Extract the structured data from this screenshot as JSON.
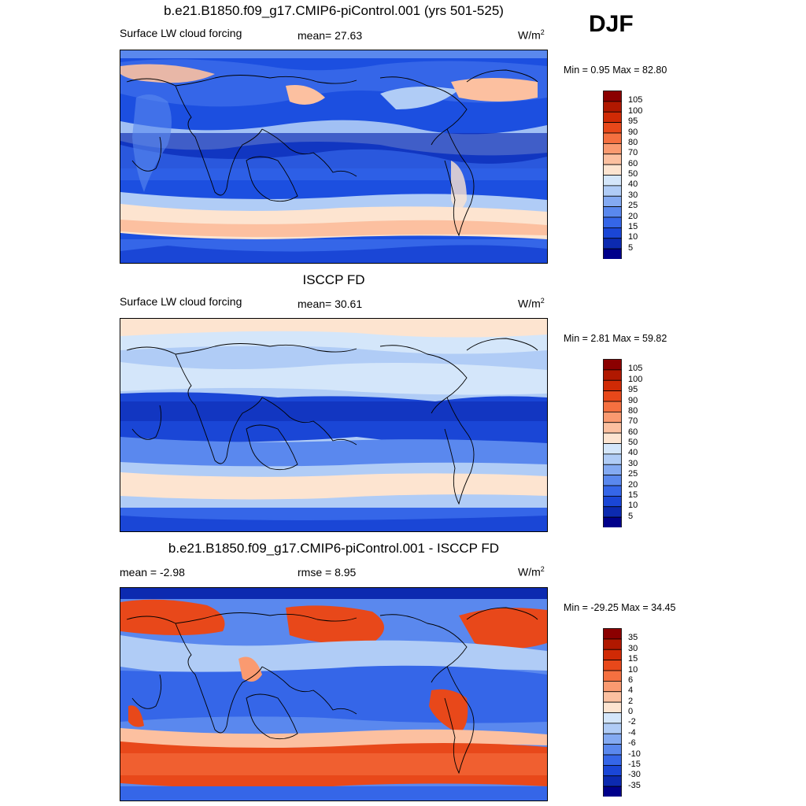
{
  "season": "DJF",
  "panels": [
    {
      "id": "model",
      "title": "b.e21.B1850.f09_g17.CMIP6-piControl.001 (yrs 501-525)",
      "left_label": "Surface LW cloud forcing",
      "center_label": "mean=  27.63",
      "units": "W/m",
      "units_sup": "2",
      "minmax": "Min =   0.95 Max =  82.80",
      "colorbar_labels": [
        "105",
        "100",
        "95",
        "90",
        "80",
        "70",
        "60",
        "50",
        "40",
        "30",
        "25",
        "20",
        "15",
        "10",
        "5"
      ],
      "colorbar_colors": [
        "#8b0000",
        "#b01800",
        "#d02a05",
        "#e8481a",
        "#f57040",
        "#fa9a70",
        "#fcc0a0",
        "#fde4d0",
        "#d4e6fa",
        "#b0ccf6",
        "#84aaf2",
        "#5a88ee",
        "#3566e8",
        "#1a46d6",
        "#0c2ab0",
        "#00008b"
      ]
    },
    {
      "id": "obs",
      "title": "ISCCP FD",
      "left_label": "Surface LW cloud forcing",
      "center_label": "mean=  30.61",
      "units": "W/m",
      "units_sup": "2",
      "minmax": "Min =   2.81 Max =  59.82",
      "colorbar_labels": [
        "105",
        "100",
        "95",
        "90",
        "80",
        "70",
        "60",
        "50",
        "40",
        "30",
        "25",
        "20",
        "15",
        "10",
        "5"
      ],
      "colorbar_colors": [
        "#8b0000",
        "#b01800",
        "#d02a05",
        "#e8481a",
        "#f57040",
        "#fa9a70",
        "#fcc0a0",
        "#fde4d0",
        "#d4e6fa",
        "#b0ccf6",
        "#84aaf2",
        "#5a88ee",
        "#3566e8",
        "#1a46d6",
        "#0c2ab0",
        "#00008b"
      ]
    },
    {
      "id": "diff",
      "title": "b.e21.B1850.f09_g17.CMIP6-piControl.001 - ISCCP FD",
      "left_label": "mean =  -2.98",
      "center_label": "rmse =   8.95",
      "units": "W/m",
      "units_sup": "2",
      "minmax": "Min = -29.25 Max =  34.45",
      "colorbar_labels": [
        "35",
        "30",
        "15",
        "10",
        "6",
        "4",
        "2",
        "0",
        "-2",
        "-4",
        "-6",
        "-10",
        "-15",
        "-30",
        "-35"
      ],
      "colorbar_colors": [
        "#8b0000",
        "#b01800",
        "#d02a05",
        "#e8481a",
        "#f57040",
        "#fa9a70",
        "#fcc0a0",
        "#fde4d0",
        "#d4e6fa",
        "#b0ccf6",
        "#84aaf2",
        "#5a88ee",
        "#3566e8",
        "#1a46d6",
        "#0c2ab0",
        "#00008b"
      ]
    }
  ]
}
